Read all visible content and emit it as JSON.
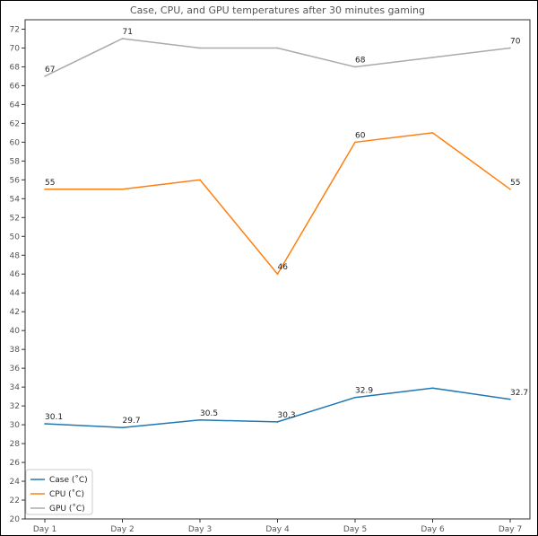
{
  "chart_data": {
    "type": "line",
    "title": "Case, CPU, and GPU temperatures after 30 minutes gaming",
    "xlabel": "",
    "ylabel": "",
    "categories": [
      "Day 1",
      "Day 2",
      "Day 3",
      "Day 4",
      "Day 5",
      "Day 6",
      "Day 7"
    ],
    "ylim": [
      20,
      73
    ],
    "yticks": [
      20,
      22,
      24,
      26,
      28,
      30,
      32,
      34,
      36,
      38,
      40,
      42,
      44,
      46,
      48,
      50,
      52,
      54,
      56,
      58,
      60,
      62,
      64,
      66,
      68,
      70,
      72
    ],
    "grid": false,
    "legend_position": "lower-left",
    "series": [
      {
        "name": "Case (˚C)",
        "color": "#1f77b4",
        "values": [
          30.1,
          29.7,
          30.5,
          30.3,
          32.9,
          33.9,
          32.7
        ],
        "labels": [
          "30.1",
          "29.7",
          "30.5",
          "30.3",
          "32.9",
          null,
          "32.7"
        ]
      },
      {
        "name": "CPU (˚C)",
        "color": "#ff7f0e",
        "values": [
          55,
          55,
          56,
          46,
          60,
          61,
          55
        ],
        "labels": [
          "55",
          null,
          null,
          "46",
          "60",
          null,
          "55"
        ]
      },
      {
        "name": "GPU (˚C)",
        "color": "#aaaaaa",
        "values": [
          67,
          71,
          70,
          70,
          68,
          69,
          70
        ],
        "labels": [
          "67",
          "71",
          null,
          null,
          "68",
          null,
          "70"
        ]
      }
    ]
  }
}
